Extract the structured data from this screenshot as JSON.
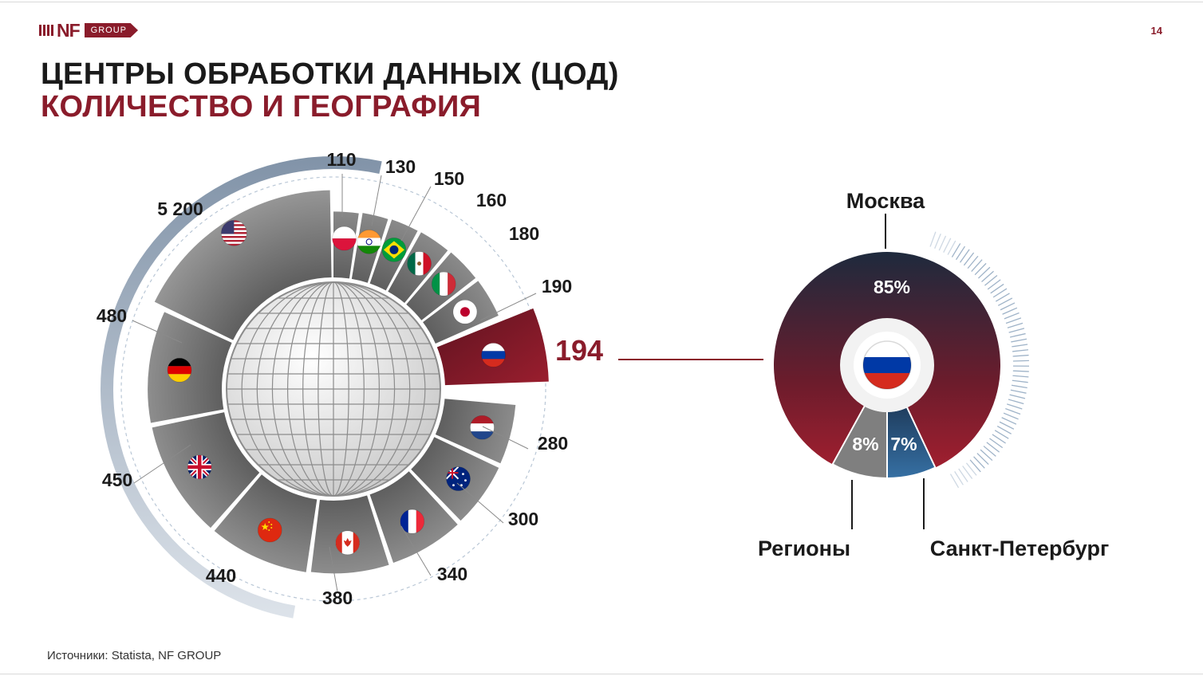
{
  "logo": {
    "brand": "NF",
    "group": "GROUP"
  },
  "page_number": "14",
  "title": {
    "line1": "ЦЕНТРЫ ОБРАБОТКИ ДАННЫХ (ЦОД)",
    "line2": "КОЛИЧЕСТВО И ГЕОГРАФИЯ"
  },
  "source": "Источники: Statista, NF GROUP",
  "colors": {
    "brand": "#8a1c2b",
    "dark": "#1a1a1a",
    "segment_grey": "#7f7f7f",
    "spb_blue": "#2c5a84",
    "moscow_top": "#1f2a3c"
  },
  "chart_data": [
    {
      "type": "radial-bar",
      "highlight": "russia-flag-icon",
      "items": [
        {
          "flag": "usa-flag-icon",
          "label": "5 200",
          "value": 5200
        },
        {
          "flag": "poland-flag-icon",
          "label": "110",
          "value": 110
        },
        {
          "flag": "india-flag-icon",
          "label": "130",
          "value": 130
        },
        {
          "flag": "brazil-flag-icon",
          "label": "150",
          "value": 150
        },
        {
          "flag": "mexico-flag-icon",
          "label": "160",
          "value": 160
        },
        {
          "flag": "italy-flag-icon",
          "label": "180",
          "value": 180
        },
        {
          "flag": "japan-flag-icon",
          "label": "190",
          "value": 190
        },
        {
          "flag": "russia-flag-icon",
          "label": "194",
          "value": 194
        },
        {
          "flag": "netherlands-flag-icon",
          "label": "280",
          "value": 280
        },
        {
          "flag": "australia-flag-icon",
          "label": "300",
          "value": 300
        },
        {
          "flag": "france-flag-icon",
          "label": "340",
          "value": 340
        },
        {
          "flag": "canada-flag-icon",
          "label": "380",
          "value": 380
        },
        {
          "flag": "china-flag-icon",
          "label": "440",
          "value": 440
        },
        {
          "flag": "uk-flag-icon",
          "label": "450",
          "value": 450
        },
        {
          "flag": "germany-flag-icon",
          "label": "480",
          "value": 480
        }
      ]
    },
    {
      "type": "pie",
      "center_icon": "russia-flag-icon",
      "slices": [
        {
          "name": "Москва",
          "label": "85%",
          "value": 85
        },
        {
          "name": "Санкт-Петербург",
          "label": "7%",
          "value": 7
        },
        {
          "name": "Регионы",
          "label": "8%",
          "value": 8
        }
      ]
    }
  ]
}
